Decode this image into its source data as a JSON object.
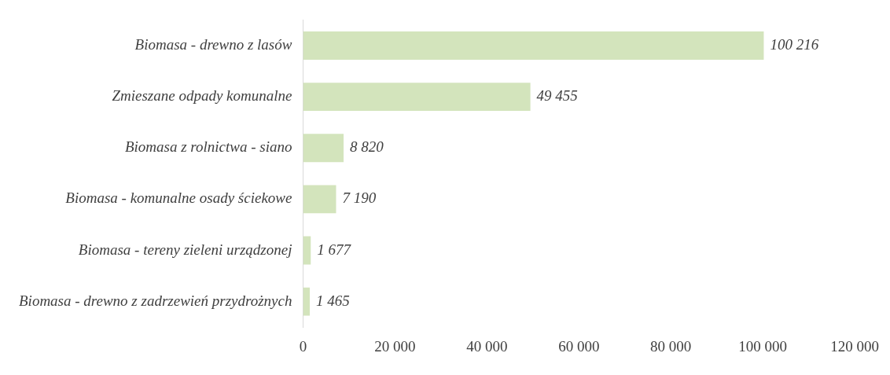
{
  "chart_data": {
    "type": "bar",
    "orientation": "horizontal",
    "categories": [
      "Biomasa - drewno z lasów",
      "Zmieszane odpady komunalne",
      "Biomasa z rolnictwa - siano",
      "Biomasa - komunalne osady ściekowe",
      "Biomasa - tereny zieleni urządzonej",
      "Biomasa - drewno z zadrzewień przydrożnych"
    ],
    "values": [
      100216,
      49455,
      8820,
      7190,
      1677,
      1465
    ],
    "value_labels": [
      "100 216",
      "49 455",
      "8 820",
      "7 190",
      "1 677",
      "1 465"
    ],
    "color": "#d3e4bc",
    "xlim": [
      0,
      120000
    ],
    "xticks": [
      0,
      {
        "value": 20000,
        "label": "20 000"
      },
      {
        "value": 40000,
        "label": "40 000"
      },
      {
        "value": 60000,
        "label": "60 000"
      },
      {
        "value": 80000,
        "label": "80 000"
      },
      {
        "value": 100000,
        "label": "100 000"
      },
      {
        "value": 120000,
        "label": "120 000"
      }
    ],
    "grid": false,
    "legend": false
  }
}
